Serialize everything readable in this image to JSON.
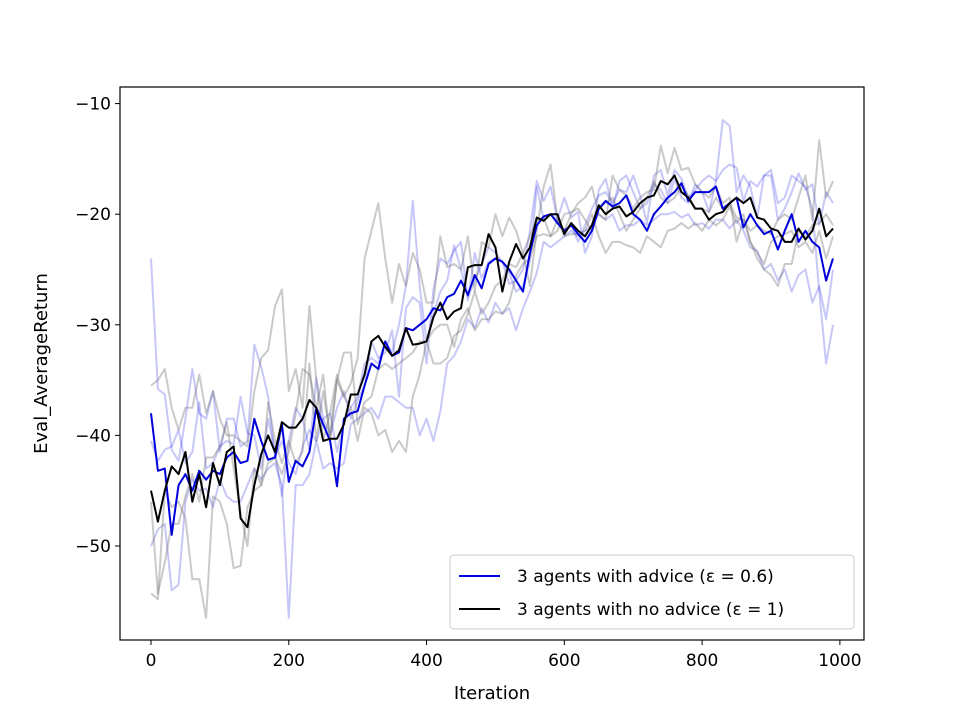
{
  "chart_data": {
    "type": "line",
    "title": "",
    "xlabel": "Iteration",
    "ylabel": "Eval_AverageReturn",
    "xlim": [
      -45,
      1035
    ],
    "ylim": [
      -58.5,
      -8.5
    ],
    "xticks": [
      0,
      200,
      400,
      600,
      800,
      1000
    ],
    "xtick_labels": [
      "0",
      "200",
      "400",
      "600",
      "800",
      "1000"
    ],
    "yticks": [
      -50,
      -40,
      -30,
      -20,
      -10
    ],
    "ytick_labels": [
      "−50",
      "−40",
      "−30",
      "−20",
      "−10"
    ],
    "grid": false,
    "legend_position": "lower-right",
    "x": [
      0,
      10,
      20,
      30,
      40,
      50,
      60,
      70,
      80,
      90,
      100,
      110,
      120,
      130,
      140,
      150,
      160,
      170,
      180,
      190,
      200,
      210,
      220,
      230,
      240,
      250,
      260,
      270,
      280,
      290,
      300,
      310,
      320,
      330,
      340,
      350,
      360,
      370,
      380,
      390,
      400,
      410,
      420,
      430,
      440,
      450,
      460,
      470,
      480,
      490,
      500,
      510,
      520,
      530,
      540,
      550,
      560,
      570,
      580,
      590,
      600,
      610,
      620,
      630,
      640,
      650,
      660,
      670,
      680,
      690,
      700,
      710,
      720,
      730,
      740,
      750,
      760,
      770,
      780,
      790,
      800,
      810,
      820,
      830,
      840,
      850,
      860,
      870,
      880,
      890,
      900,
      910,
      920,
      930,
      940,
      950,
      960,
      970,
      980,
      990
    ],
    "series": [
      {
        "name": "3 agents with advice (ε = 0.6)",
        "role": "mean",
        "color": "#0000dd",
        "values": [
          -38.0,
          -43.2,
          -43.0,
          -49.0,
          -44.5,
          -43.5,
          -45.0,
          -43.2,
          -44.0,
          -43.2,
          -43.5,
          -42.0,
          -41.5,
          -42.5,
          -42.3,
          -38.5,
          -40.5,
          -42.2,
          -42.0,
          -39.0,
          -44.2,
          -42.3,
          -42.8,
          -41.5,
          -37.5,
          -39.0,
          -40.5,
          -44.6,
          -38.5,
          -38.0,
          -37.8,
          -35.5,
          -33.5,
          -34.0,
          -31.5,
          -32.8,
          -32.5,
          -30.3,
          -30.5,
          -30.0,
          -29.5,
          -28.5,
          -28.7,
          -27.5,
          -27.2,
          -26.0,
          -27.3,
          -25.5,
          -26.7,
          -24.5,
          -24.0,
          -24.3,
          -25.0,
          -26.0,
          -27.0,
          -23.5,
          -21.0,
          -20.2,
          -20.0,
          -20.8,
          -21.5,
          -21.0,
          -21.8,
          -22.5,
          -21.5,
          -19.5,
          -18.8,
          -19.3,
          -19.0,
          -18.3,
          -20.0,
          -20.5,
          -21.5,
          -20.0,
          -19.3,
          -18.5,
          -18.0,
          -17.2,
          -18.8,
          -18.0,
          -18.0,
          -18.0,
          -17.5,
          -19.5,
          -19.0,
          -18.5,
          -21.2,
          -20.0,
          -21.0,
          -21.8,
          -21.5,
          -23.2,
          -21.5,
          -20.0,
          -22.5,
          -21.5,
          -22.5,
          -23.0,
          -26.0,
          -24.0
        ]
      },
      {
        "name": "3 agents with no advice (ε = 1)",
        "role": "mean",
        "color": "#000000",
        "values": [
          -45.0,
          -47.8,
          -45.0,
          -42.8,
          -43.5,
          -41.5,
          -46.0,
          -43.5,
          -46.5,
          -42.5,
          -44.5,
          -41.5,
          -41.0,
          -47.5,
          -48.3,
          -44.5,
          -41.7,
          -40.0,
          -41.5,
          -38.8,
          -39.3,
          -39.3,
          -38.5,
          -36.8,
          -37.5,
          -40.5,
          -40.3,
          -40.3,
          -39.0,
          -36.3,
          -36.3,
          -34.5,
          -31.5,
          -31.0,
          -32.0,
          -32.8,
          -32.3,
          -30.3,
          -31.8,
          -31.7,
          -31.5,
          -29.3,
          -28.0,
          -29.5,
          -28.8,
          -28.5,
          -24.8,
          -24.6,
          -24.6,
          -21.8,
          -23.0,
          -27.0,
          -24.3,
          -22.7,
          -24.0,
          -23.0,
          -20.3,
          -20.6,
          -20.0,
          -20.0,
          -21.8,
          -20.8,
          -21.5,
          -22.0,
          -21.0,
          -19.2,
          -20.0,
          -19.5,
          -19.3,
          -20.2,
          -19.8,
          -19.0,
          -18.5,
          -18.3,
          -17.0,
          -17.3,
          -16.5,
          -18.0,
          -18.5,
          -19.5,
          -19.5,
          -20.5,
          -20.0,
          -19.8,
          -19.0,
          -18.5,
          -19.0,
          -18.5,
          -20.3,
          -20.5,
          -21.3,
          -21.5,
          -22.5,
          -22.5,
          -21.3,
          -22.3,
          -21.5,
          -19.5,
          -22.0,
          -21.3
        ]
      },
      {
        "name": "",
        "role": "individual-run",
        "color": "#0000dd",
        "values": [
          -24.0,
          -35.8,
          -36.3,
          -41.3,
          -42.3,
          -38.5,
          -34.0,
          -38.0,
          -38.5,
          -36.0,
          -41.5,
          -38.5,
          -38.5,
          -41.0,
          -40.5,
          -31.8,
          -33.8,
          -36.5,
          -42.0,
          -40.5,
          -42.5,
          -43.5,
          -41.0,
          -39.5,
          -40.5,
          -38.5,
          -38.0,
          -41.5,
          -38.8,
          -37.5,
          -36.5,
          -33.5,
          -33.0,
          -33.5,
          -31.5,
          -32.5,
          -30.0,
          -26.5,
          -18.8,
          -26.5,
          -31.5,
          -29.0,
          -27.0,
          -26.0,
          -22.8,
          -25.0,
          -27.5,
          -26.0,
          -24.5,
          -23.0,
          -23.5,
          -24.3,
          -25.3,
          -27.0,
          -26.5,
          -24.3,
          -17.5,
          -20.5,
          -20.0,
          -20.5,
          -21.5,
          -21.0,
          -22.5,
          -21.0,
          -19.5,
          -18.3,
          -18.0,
          -19.0,
          -17.8,
          -18.0,
          -16.5,
          -18.3,
          -20.8,
          -16.5,
          -16.0,
          -18.3,
          -16.0,
          -16.8,
          -18.5,
          -17.8,
          -17.0,
          -16.5,
          -17.0,
          -16.0,
          -15.5,
          -15.8,
          -18.8,
          -17.0,
          -17.5,
          -16.5,
          -16.5,
          -20.5,
          -19.5,
          -18.0,
          -16.3,
          -17.8,
          -17.3,
          -21.0,
          -18.0,
          -19.0
        ]
      },
      {
        "name": "",
        "role": "individual-run",
        "color": "#0000dd",
        "values": [
          -40.5,
          -42.3,
          -41.3,
          -41.0,
          -39.5,
          -42.5,
          -41.5,
          -37.0,
          -43.0,
          -42.5,
          -41.0,
          -40.5,
          -40.8,
          -36.5,
          -39.8,
          -40.0,
          -43.0,
          -38.5,
          -41.5,
          -45.5,
          -40.5,
          -37.5,
          -38.5,
          -41.3,
          -34.8,
          -38.5,
          -40.0,
          -37.5,
          -36.0,
          -38.5,
          -36.8,
          -35.5,
          -31.5,
          -33.0,
          -32.5,
          -30.5,
          -36.5,
          -28.5,
          -27.5,
          -28.0,
          -33.5,
          -26.8,
          -24.0,
          -24.5,
          -23.3,
          -22.5,
          -27.8,
          -23.5,
          -25.8,
          -24.3,
          -24.0,
          -24.3,
          -26.3,
          -26.0,
          -25.0,
          -21.5,
          -17.0,
          -18.8,
          -17.5,
          -20.5,
          -18.5,
          -20.3,
          -19.8,
          -23.5,
          -22.0,
          -17.8,
          -16.8,
          -19.5,
          -17.0,
          -16.5,
          -18.0,
          -19.5,
          -19.0,
          -17.3,
          -17.8,
          -19.0,
          -16.8,
          -18.5,
          -19.0,
          -17.3,
          -18.0,
          -19.8,
          -17.0,
          -11.5,
          -12.0,
          -18.0,
          -16.5,
          -17.5,
          -20.3,
          -16.5,
          -16.0,
          -19.0,
          -18.5,
          -16.5,
          -17.0,
          -17.5,
          -19.5,
          -27.0,
          -33.5,
          -30.0
        ]
      },
      {
        "name": "",
        "role": "individual-run",
        "color": "#0000dd",
        "values": [
          -50.0,
          -48.5,
          -48.0,
          -54.0,
          -53.5,
          -46.0,
          -44.0,
          -45.0,
          -44.8,
          -46.5,
          -44.0,
          -45.5,
          -46.0,
          -46.0,
          -44.5,
          -43.0,
          -44.0,
          -43.0,
          -42.5,
          -44.5,
          -56.5,
          -44.5,
          -44.5,
          -43.5,
          -40.5,
          -43.0,
          -42.5,
          -43.0,
          -42.5,
          -39.0,
          -38.5,
          -38.0,
          -37.5,
          -38.5,
          -36.5,
          -36.5,
          -37.0,
          -37.5,
          -37.5,
          -40.0,
          -38.5,
          -40.5,
          -37.8,
          -33.5,
          -32.8,
          -31.5,
          -29.5,
          -30.3,
          -28.5,
          -29.8,
          -28.0,
          -29.0,
          -28.5,
          -30.5,
          -28.5,
          -27.0,
          -25.3,
          -22.5,
          -23.0,
          -22.5,
          -22.0,
          -21.5,
          -22.0,
          -21.5,
          -21.0,
          -20.0,
          -20.5,
          -20.0,
          -21.5,
          -21.0,
          -21.0,
          -20.5,
          -21.0,
          -20.5,
          -20.0,
          -20.0,
          -19.8,
          -20.3,
          -20.0,
          -21.0,
          -20.8,
          -21.3,
          -20.5,
          -20.5,
          -21.3,
          -20.5,
          -21.5,
          -23.0,
          -23.3,
          -25.0,
          -24.5,
          -26.0,
          -25.0,
          -27.0,
          -25.5,
          -25.0,
          -28.0,
          -26.5,
          -29.5,
          -25.0
        ]
      },
      {
        "name": "",
        "role": "individual-run",
        "color": "#666666",
        "values": [
          -35.5,
          -35.0,
          -34.0,
          -37.5,
          -39.5,
          -37.5,
          -37.5,
          -34.5,
          -38.0,
          -36.0,
          -38.5,
          -40.0,
          -40.0,
          -40.5,
          -41.0,
          -36.0,
          -33.0,
          -32.3,
          -28.3,
          -26.8,
          -36.0,
          -34.0,
          -37.5,
          -28.3,
          -35.0,
          -40.5,
          -38.0,
          -34.5,
          -36.5,
          -35.3,
          -33.0,
          -24.0,
          -21.5,
          -19.0,
          -24.0,
          -28.0,
          -24.5,
          -26.5,
          -23.5,
          -25.0,
          -28.0,
          -28.0,
          -22.0,
          -24.8,
          -24.5,
          -25.0,
          -22.0,
          -27.0,
          -22.5,
          -23.0,
          -20.0,
          -22.0,
          -20.3,
          -21.5,
          -23.5,
          -26.5,
          -21.5,
          -17.5,
          -15.5,
          -20.5,
          -21.5,
          -20.0,
          -19.0,
          -18.5,
          -17.5,
          -20.0,
          -20.5,
          -16.5,
          -17.8,
          -18.3,
          -19.5,
          -18.5,
          -18.0,
          -17.8,
          -13.8,
          -16.3,
          -14.0,
          -16.0,
          -15.8,
          -17.3,
          -18.0,
          -18.5,
          -17.5,
          -19.0,
          -18.5,
          -22.5,
          -20.5,
          -21.5,
          -21.0,
          -21.5,
          -21.8,
          -20.5,
          -20.0,
          -20.5,
          -18.5,
          -16.5,
          -20.5,
          -13.3,
          -18.5,
          -17.0
        ]
      },
      {
        "name": "",
        "role": "individual-run",
        "color": "#666666",
        "values": [
          -54.3,
          -54.8,
          -45.0,
          -46.5,
          -46.0,
          -47.5,
          -53.0,
          -53.0,
          -56.5,
          -45.5,
          -46.0,
          -48.0,
          -52.0,
          -51.8,
          -46.5,
          -45.0,
          -44.5,
          -42.5,
          -42.0,
          -43.5,
          -41.5,
          -38.0,
          -34.0,
          -34.5,
          -37.5,
          -34.5,
          -40.5,
          -35.0,
          -32.5,
          -32.5,
          -39.0,
          -37.0,
          -36.5,
          -34.0,
          -33.5,
          -34.0,
          -33.5,
          -33.0,
          -32.5,
          -31.5,
          -31.5,
          -30.5,
          -30.0,
          -30.0,
          -32.0,
          -29.5,
          -28.5,
          -30.5,
          -29.5,
          -29.5,
          -28.8,
          -29.0,
          -28.0,
          -25.5,
          -24.5,
          -24.0,
          -22.0,
          -21.8,
          -22.0,
          -20.5,
          -22.0,
          -21.8,
          -21.8,
          -21.5,
          -20.0,
          -22.0,
          -23.5,
          -22.5,
          -22.5,
          -22.8,
          -23.0,
          -23.5,
          -22.0,
          -22.5,
          -23.0,
          -21.5,
          -21.3,
          -20.8,
          -21.3,
          -20.8,
          -21.5,
          -20.5,
          -21.0,
          -20.5,
          -19.3,
          -20.8,
          -20.0,
          -22.5,
          -24.0,
          -25.0,
          -25.5,
          -26.5,
          -24.5,
          -24.5,
          -21.5,
          -22.0,
          -21.0,
          -20.8,
          -20.0,
          -21.0
        ]
      },
      {
        "name": "",
        "role": "individual-run",
        "color": "#666666",
        "values": [
          -46.0,
          -54.3,
          -51.5,
          -48.0,
          -48.0,
          -45.5,
          -43.5,
          -46.0,
          -42.0,
          -42.0,
          -41.0,
          -38.8,
          -43.0,
          -47.0,
          -50.0,
          -43.0,
          -44.5,
          -37.0,
          -40.5,
          -42.5,
          -40.5,
          -42.5,
          -41.5,
          -33.5,
          -40.5,
          -36.0,
          -40.0,
          -35.0,
          -36.5,
          -37.5,
          -40.5,
          -37.5,
          -38.0,
          -40.0,
          -39.5,
          -41.5,
          -40.5,
          -41.5,
          -36.5,
          -34.5,
          -31.5,
          -33.5,
          -33.5,
          -33.0,
          -31.0,
          -30.5,
          -29.0,
          -27.0,
          -29.0,
          -28.0,
          -26.5,
          -26.0,
          -24.5,
          -24.8,
          -23.5,
          -22.0,
          -20.5,
          -20.3,
          -22.0,
          -21.5,
          -20.0,
          -19.8,
          -19.5,
          -20.5,
          -21.5,
          -19.5,
          -19.0,
          -18.5,
          -20.0,
          -21.5,
          -20.5,
          -19.5,
          -18.5,
          -17.0,
          -18.5,
          -19.0,
          -18.5,
          -17.5,
          -18.3,
          -19.5,
          -19.5,
          -19.8,
          -18.5,
          -19.5,
          -19.0,
          -20.3,
          -20.5,
          -22.5,
          -23.5,
          -24.5,
          -22.5,
          -22.0,
          -21.8,
          -21.5,
          -23.0,
          -22.5,
          -23.5,
          -21.5,
          -24.0,
          -22.0
        ]
      }
    ]
  }
}
